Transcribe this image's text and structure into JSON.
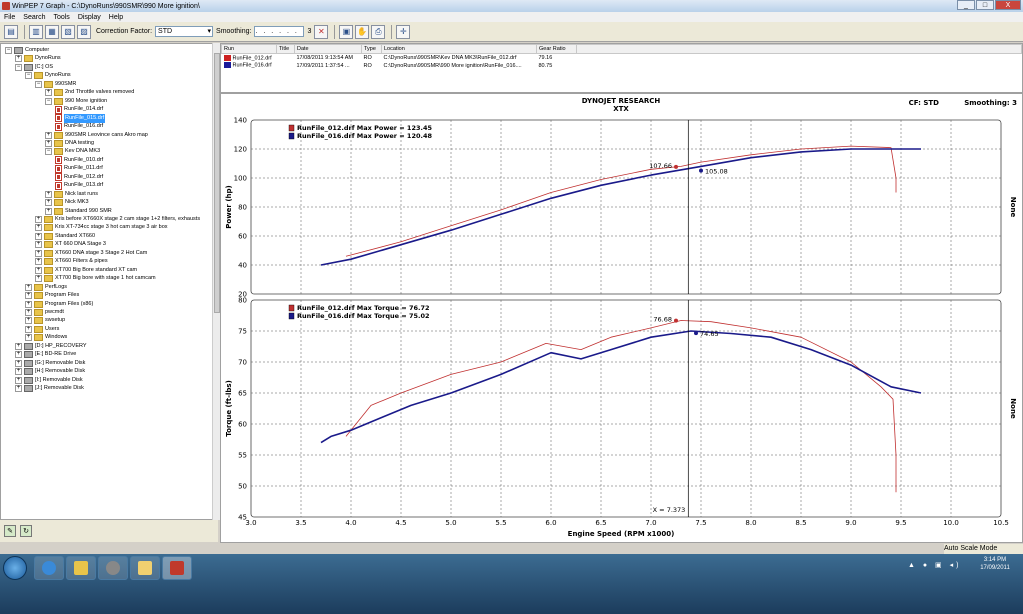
{
  "window": {
    "title": "WinPEP 7    Graph - C:\\DynoRuns\\990SMR\\990 More ignition\\",
    "controls": [
      "_",
      "□",
      "X"
    ]
  },
  "menu": [
    "File",
    "Search",
    "Tools",
    "Display",
    "Help"
  ],
  "toolbar": {
    "correction_label": "Correction Factor:",
    "correction_value": "STD",
    "smoothing_label": "Smoothing:",
    "smoothing_value": ". . . . . .",
    "smoothing_number": "3"
  },
  "tree": [
    {
      "label": "Computer",
      "level": 0,
      "type": "computer"
    },
    {
      "label": "DynoRuns",
      "level": 1,
      "type": "folder"
    },
    {
      "label": "[C:] OS",
      "level": 1,
      "type": "drive"
    },
    {
      "label": "DynoRuns",
      "level": 2,
      "type": "folder"
    },
    {
      "label": "990SMR",
      "level": 3,
      "type": "folder"
    },
    {
      "label": "2nd Throttle valves removed",
      "level": 4,
      "type": "folder"
    },
    {
      "label": "990 More ignition",
      "level": 4,
      "type": "folder"
    },
    {
      "label": "RunFile_014.drf",
      "level": 5,
      "type": "run"
    },
    {
      "label": "RunFile_015.drf",
      "level": 5,
      "type": "run",
      "selected": true
    },
    {
      "label": "RunFile_016.drf",
      "level": 5,
      "type": "run"
    },
    {
      "label": "990SMR Leovince cans Akro map",
      "level": 4,
      "type": "folder"
    },
    {
      "label": "DNA testing",
      "level": 4,
      "type": "folder"
    },
    {
      "label": "Kev DNA MK3",
      "level": 4,
      "type": "folder"
    },
    {
      "label": "RunFile_010.drf",
      "level": 5,
      "type": "run"
    },
    {
      "label": "RunFile_011.drf",
      "level": 5,
      "type": "run"
    },
    {
      "label": "RunFile_012.drf",
      "level": 5,
      "type": "run"
    },
    {
      "label": "RunFile_013.drf",
      "level": 5,
      "type": "run"
    },
    {
      "label": "Nick last runs",
      "level": 4,
      "type": "folder"
    },
    {
      "label": "Nick MK3",
      "level": 4,
      "type": "folder"
    },
    {
      "label": "Standard 990 SMR",
      "level": 4,
      "type": "folder"
    },
    {
      "label": "Kris before XT660X stage 2 cam stage 1+2 filters, exhausts",
      "level": 3,
      "type": "folder"
    },
    {
      "label": "Kris XT-734cc stage 3 hot cam stage 3 air box",
      "level": 3,
      "type": "folder"
    },
    {
      "label": "Standard XT660",
      "level": 3,
      "type": "folder"
    },
    {
      "label": "XT 660 DNA Stage 3",
      "level": 3,
      "type": "folder"
    },
    {
      "label": "XT660 DNA stage 3 Stage 2 Hot Cam",
      "level": 3,
      "type": "folder"
    },
    {
      "label": "XT660 Filters & pipes",
      "level": 3,
      "type": "folder"
    },
    {
      "label": "XT700 Big Bore standard XT cam",
      "level": 3,
      "type": "folder"
    },
    {
      "label": "XT700 Big bore with stage 1 hot camcam",
      "level": 3,
      "type": "folder"
    },
    {
      "label": "PerfLogs",
      "level": 2,
      "type": "folder"
    },
    {
      "label": "Program Files",
      "level": 2,
      "type": "folder"
    },
    {
      "label": "Program Files (x86)",
      "level": 2,
      "type": "folder"
    },
    {
      "label": "pwcmdt",
      "level": 2,
      "type": "folder"
    },
    {
      "label": "swsetup",
      "level": 2,
      "type": "folder"
    },
    {
      "label": "Users",
      "level": 2,
      "type": "folder"
    },
    {
      "label": "Windows",
      "level": 2,
      "type": "folder"
    },
    {
      "label": "[D:] HP_RECOVERY",
      "level": 1,
      "type": "drive"
    },
    {
      "label": "[E:] BD-RE Drive",
      "level": 1,
      "type": "drive"
    },
    {
      "label": "[G:] Removable Disk",
      "level": 1,
      "type": "drive"
    },
    {
      "label": "[H:] Removable Disk",
      "level": 1,
      "type": "drive"
    },
    {
      "label": "[I:] Removable Disk",
      "level": 1,
      "type": "drive"
    },
    {
      "label": "[J:] Removable Disk",
      "level": 1,
      "type": "drive"
    }
  ],
  "runlist": {
    "headers": [
      "Run",
      "Title",
      "Date",
      "Type",
      "Location",
      "Gear Ratio"
    ],
    "rows": [
      {
        "run": "RunFile_012.drf",
        "title": "",
        "date": "17/08/2011 9:13:54 AM",
        "type": "RO",
        "location": "C:\\DynoRuns\\990SMR\\Kev DNA MK3\\RunFile_012.drf",
        "gear": "79.16",
        "color": "#cc2020"
      },
      {
        "run": "RunFile_016.drf",
        "title": "",
        "date": "17/09/2011 1:37:54 ...",
        "type": "RO",
        "location": "C:\\DynoRuns\\990SMR\\990 More ignition\\RunFile_016....",
        "gear": "80.75",
        "color": "#1a1a9a"
      }
    ]
  },
  "chart_data": {
    "type": "line",
    "header": {
      "title": "DYNOJET RESEARCH",
      "subtitle": "XTX",
      "cf": "CF: STD",
      "smoothing": "Smoothing: 3"
    },
    "xlabel": "Engine Speed (RPM x1000)",
    "xlim": [
      3.0,
      10.5
    ],
    "xticks": [
      "3.0",
      "3.5",
      "4.0",
      "4.5",
      "5.0",
      "5.5",
      "6.0",
      "6.5",
      "7.0",
      "7.5",
      "8.0",
      "8.5",
      "9.0",
      "9.5",
      "10.0",
      "10.5"
    ],
    "cursor_x": 7.373,
    "cursor_label": "X = 7.373",
    "right_label": "None",
    "panels": [
      {
        "name": "power",
        "ylabel": "Power (hp)",
        "ylim": [
          20,
          140
        ],
        "yticks": [
          "20",
          "40",
          "60",
          "80",
          "100",
          "120",
          "140"
        ],
        "legend": [
          "RunFile_012.drf Max Power = 123.45",
          "RunFile_016.drf Max Power = 120.48"
        ],
        "series": [
          {
            "name": "RunFile_012.drf",
            "color": "#c03030",
            "width": 0.8,
            "x": [
              3.95,
              4.5,
              5.0,
              5.5,
              6.0,
              6.5,
              7.0,
              7.3,
              7.5,
              8.0,
              8.5,
              9.0,
              9.4,
              9.45,
              9.45
            ],
            "y": [
              46,
              56,
              67,
              78,
              90,
              99,
              106,
              108,
              111,
              116,
              120,
              122,
              121,
              100,
              90
            ]
          },
          {
            "name": "RunFile_016.drf",
            "color": "#1a1a8a",
            "width": 1.6,
            "x": [
              3.7,
              4.0,
              4.5,
              5.0,
              5.5,
              6.0,
              6.5,
              7.0,
              7.5,
              8.0,
              8.5,
              9.0,
              9.5,
              9.7
            ],
            "y": [
              40,
              44,
              54,
              64,
              75,
              86,
              95,
              102,
              108,
              114,
              118,
              120,
              120,
              120
            ]
          }
        ],
        "markers": [
          {
            "x": 7.25,
            "y": 107.66,
            "label": "107.66",
            "color": "#c03030"
          },
          {
            "x": 7.5,
            "y": 105.08,
            "label": "105.08",
            "color": "#1a1a8a"
          }
        ]
      },
      {
        "name": "torque",
        "ylabel": "Torque (ft-lbs)",
        "ylim": [
          45,
          80
        ],
        "yticks": [
          "45",
          "50",
          "55",
          "60",
          "65",
          "70",
          "75",
          "80"
        ],
        "legend": [
          "RunFile_012.drf Max Torque = 76.72",
          "RunFile_016.drf Max Torque = 75.02"
        ],
        "series": [
          {
            "name": "RunFile_012.drf",
            "color": "#c03030",
            "width": 0.8,
            "x": [
              3.95,
              4.2,
              4.5,
              5.0,
              5.5,
              5.95,
              6.3,
              6.6,
              7.0,
              7.3,
              7.6,
              8.0,
              8.5,
              9.0,
              9.3,
              9.42,
              9.45,
              9.45
            ],
            "y": [
              58,
              63,
              65,
              68,
              70,
              73,
              72,
              74,
              75.5,
              76.7,
              76.5,
              75.5,
              74,
              70,
              66,
              64,
              55,
              49
            ]
          },
          {
            "name": "RunFile_016.drf",
            "color": "#1a1a8a",
            "width": 1.6,
            "x": [
              3.7,
              3.8,
              4.0,
              4.3,
              4.6,
              5.0,
              5.5,
              6.0,
              6.3,
              6.6,
              7.0,
              7.4,
              7.8,
              8.2,
              8.6,
              9.0,
              9.4,
              9.7
            ],
            "y": [
              57,
              58,
              59,
              61,
              63,
              65,
              68,
              71.5,
              70.5,
              72,
              74,
              75,
              74.6,
              74,
              72,
              69.5,
              66,
              65
            ]
          }
        ],
        "markers": [
          {
            "x": 7.25,
            "y": 76.68,
            "label": "76.68",
            "color": "#c03030"
          },
          {
            "x": 7.45,
            "y": 74.65,
            "label": "74.65",
            "color": "#1a1a8a"
          }
        ]
      }
    ]
  },
  "statusbar": {
    "mode": "Auto Scale Mode"
  },
  "taskbar": {
    "time": "3:14 PM",
    "date": "17/09/2011"
  }
}
